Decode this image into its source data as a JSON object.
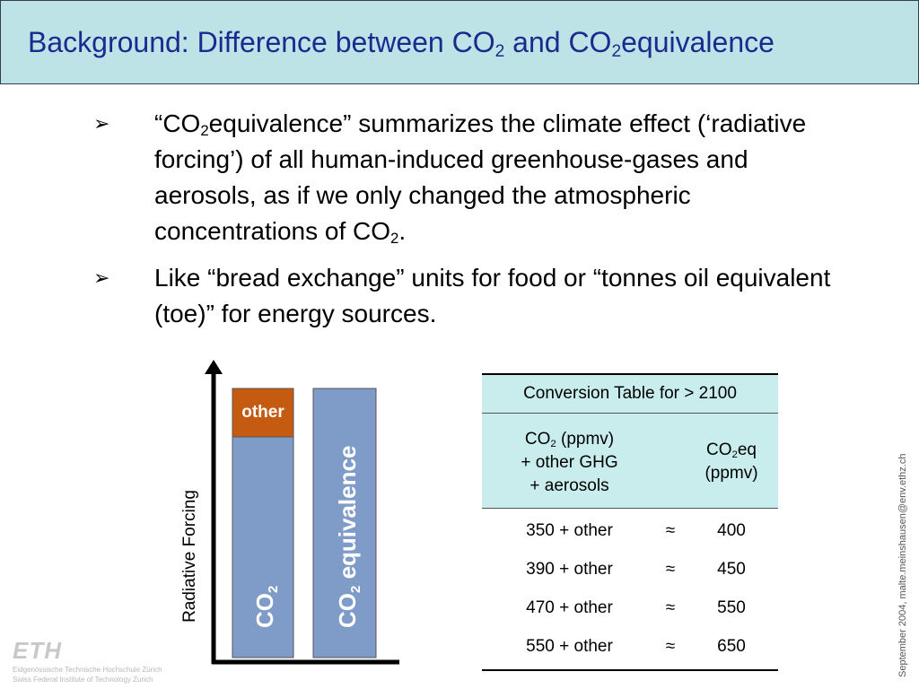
{
  "title": {
    "pre": "Background: Difference between CO",
    "sub1": "2",
    "mid": " and CO",
    "sub2": "2",
    "post": "equivalence"
  },
  "bullets": [
    {
      "marker": "➢",
      "parts": [
        {
          "text": "“CO"
        },
        {
          "sub": "2"
        },
        {
          "text": "equivalence” summarizes the climate effect (‘radiative forcing’) of all human-induced greenhouse-gases and aerosols, as if we only changed the atmospheric concentrations of CO"
        },
        {
          "sub": "2"
        },
        {
          "text": "."
        }
      ]
    },
    {
      "marker": "➢",
      "parts": [
        {
          "text": "Like “bread exchange” units for food or “tonnes oil equivalent (toe)” for energy sources."
        }
      ]
    }
  ],
  "diagram": {
    "axis_label": "Radiative Forcing",
    "bar1_top_label": "other",
    "bar1_label_main": "CO",
    "bar1_label_sub": "2",
    "bar2_label_main": "CO",
    "bar2_label_sub": "2",
    "bar2_label_rest": " equivalence",
    "colors": {
      "bar": "#7f9cc9",
      "other": "#c55a11",
      "axis": "#000000"
    }
  },
  "table": {
    "header": "Conversion Table for > 2100",
    "col1": {
      "line1_pre": "CO",
      "line1_sub": "2",
      "line1_post": " (ppmv)",
      "line2": "+ other GHG",
      "line3": "+ aerosols"
    },
    "col3": {
      "line1_pre": "CO",
      "line1_sub": "2",
      "line1_post": "eq",
      "line2": "(ppmv)"
    },
    "rows": [
      {
        "left": "350 + other",
        "sym": "≈",
        "right": "400"
      },
      {
        "left": "390 + other",
        "sym": "≈",
        "right": "450"
      },
      {
        "left": "470 + other",
        "sym": "≈",
        "right": "550"
      },
      {
        "left": "550 + other",
        "sym": "≈",
        "right": "650"
      }
    ]
  },
  "footer": {
    "side_note": "September 2004, malte.meinshausen@env.ethz.ch",
    "logo_mark": "ETH",
    "logo_line1": "Eidgenössische Technische Hochschule Zürich",
    "logo_line2": "Swiss Federal Institute of Technology Zurich"
  }
}
